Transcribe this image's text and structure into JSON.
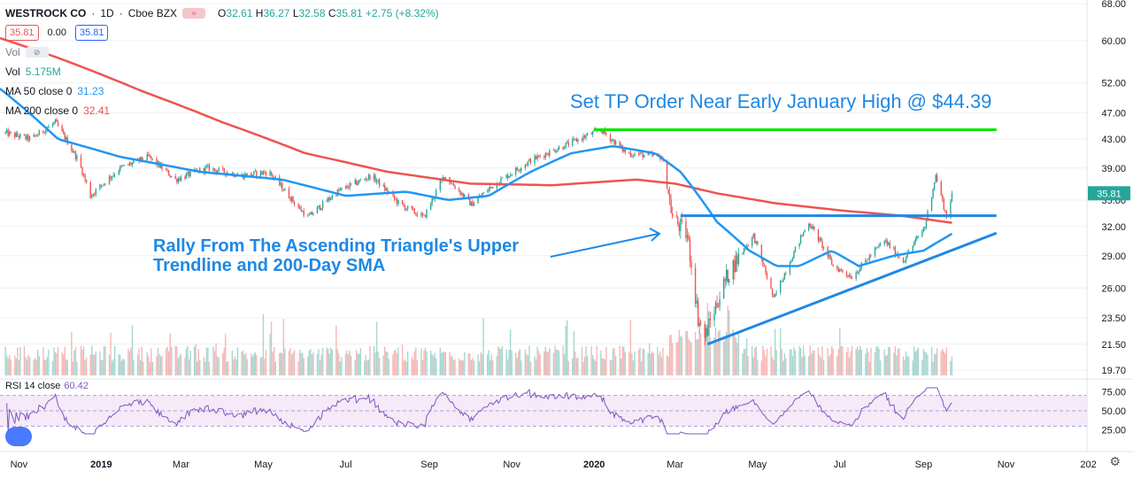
{
  "header": {
    "symbol": "WESTROCK CO",
    "interval": "1D",
    "exchange": "Cboe BZX",
    "open_label": "O",
    "open": "32.61",
    "high_label": "H",
    "high": "36.27",
    "low_label": "L",
    "low": "32.58",
    "close_label": "C",
    "close": "35.81",
    "change": "+2.75 (+8.32%)",
    "bid": "35.81",
    "spread": "0.00",
    "ask": "35.81"
  },
  "indicators": {
    "vol_toggle": "Vol",
    "vol_label": "Vol",
    "vol_value": "5.175M",
    "ma50_label": "MA 50 close 0",
    "ma50_value": "31.23",
    "ma200_label": "MA 200 close 0",
    "ma200_value": "32.41",
    "rsi_label": "RSI 14 close",
    "rsi_value": "60.42"
  },
  "colors": {
    "up": "#26a69a",
    "down": "#ef5350",
    "ma50": "#2196f3",
    "ma200": "#ef5350",
    "annotation": "#1e88e5",
    "target_line": "#00e600",
    "rsi": "#7e57c2"
  },
  "annotations": {
    "target_text": "Set TP Order Near Early January High @ $44.39",
    "rally_line1": "Rally From The Ascending Triangle's Upper",
    "rally_line2": "Trendline and 200-Day SMA"
  },
  "axis": {
    "price_ticks": [
      "68.00",
      "60.00",
      "52.00",
      "47.00",
      "43.00",
      "39.00",
      "35.00",
      "32.00",
      "29.00",
      "26.00",
      "23.50",
      "21.50",
      "19.70"
    ],
    "rsi_ticks": [
      "75.00",
      "50.00",
      "25.00"
    ],
    "time_labels": [
      "Nov",
      "2019",
      "Mar",
      "May",
      "Jul",
      "Sep",
      "Nov",
      "2020",
      "Mar",
      "May",
      "Jul",
      "Sep",
      "Nov",
      "202"
    ]
  },
  "chart_data": {
    "type": "candlestick",
    "title": "WESTROCK CO · 1D · Cboe BZX",
    "price_scale": "log",
    "ylim": [
      19.7,
      68
    ],
    "x_range": [
      "2018-10-18",
      "2020-12-31"
    ],
    "waypoints": [
      {
        "date": "2018-10-20",
        "close": 44.0
      },
      {
        "date": "2018-11-10",
        "close": 43.0
      },
      {
        "date": "2018-11-28",
        "close": 45.5
      },
      {
        "date": "2018-12-15",
        "close": 40.0
      },
      {
        "date": "2018-12-24",
        "close": 35.5
      },
      {
        "date": "2019-01-15",
        "close": 39.0
      },
      {
        "date": "2019-02-05",
        "close": 40.5
      },
      {
        "date": "2019-02-25",
        "close": 37.5
      },
      {
        "date": "2019-03-20",
        "close": 39.0
      },
      {
        "date": "2019-04-15",
        "close": 38.0
      },
      {
        "date": "2019-05-05",
        "close": 38.5
      },
      {
        "date": "2019-05-25",
        "close": 34.5
      },
      {
        "date": "2019-06-03",
        "close": 33.0
      },
      {
        "date": "2019-06-25",
        "close": 36.0
      },
      {
        "date": "2019-07-20",
        "close": 38.0
      },
      {
        "date": "2019-08-10",
        "close": 34.5
      },
      {
        "date": "2019-08-28",
        "close": 33.0
      },
      {
        "date": "2019-09-12",
        "close": 38.0
      },
      {
        "date": "2019-10-02",
        "close": 34.5
      },
      {
        "date": "2019-10-20",
        "close": 37.0
      },
      {
        "date": "2019-11-15",
        "close": 40.0
      },
      {
        "date": "2019-12-15",
        "close": 42.5
      },
      {
        "date": "2020-01-06",
        "close": 44.39
      },
      {
        "date": "2020-01-25",
        "close": 41.0
      },
      {
        "date": "2020-02-20",
        "close": 40.5
      },
      {
        "date": "2020-02-28",
        "close": 33.0
      },
      {
        "date": "2020-03-10",
        "close": 31.0
      },
      {
        "date": "2020-03-18",
        "close": 23.5
      },
      {
        "date": "2020-03-23",
        "close": 22.0
      },
      {
        "date": "2020-04-10",
        "close": 27.5
      },
      {
        "date": "2020-04-28",
        "close": 31.0
      },
      {
        "date": "2020-05-13",
        "close": 25.0
      },
      {
        "date": "2020-06-08",
        "close": 32.5
      },
      {
        "date": "2020-06-26",
        "close": 28.0
      },
      {
        "date": "2020-07-10",
        "close": 27.0
      },
      {
        "date": "2020-08-03",
        "close": 30.5
      },
      {
        "date": "2020-08-17",
        "close": 28.5
      },
      {
        "date": "2020-09-02",
        "close": 32.0
      },
      {
        "date": "2020-09-10",
        "close": 38.0
      },
      {
        "date": "2020-09-18",
        "close": 33.0
      },
      {
        "date": "2020-09-22",
        "close": 35.81
      }
    ],
    "ma50_waypoints": [
      {
        "date": "2018-10-18",
        "value": 51.0
      },
      {
        "date": "2018-11-30",
        "value": 43.0
      },
      {
        "date": "2019-01-15",
        "value": 40.5
      },
      {
        "date": "2019-03-15",
        "value": 38.5
      },
      {
        "date": "2019-05-15",
        "value": 37.5
      },
      {
        "date": "2019-07-01",
        "value": 35.5
      },
      {
        "date": "2019-08-15",
        "value": 36.0
      },
      {
        "date": "2019-09-15",
        "value": 35.0
      },
      {
        "date": "2019-10-15",
        "value": 35.5
      },
      {
        "date": "2019-11-15",
        "value": 38.5
      },
      {
        "date": "2019-12-15",
        "value": 41.0
      },
      {
        "date": "2020-01-15",
        "value": 42.0
      },
      {
        "date": "2020-02-15",
        "value": 41.0
      },
      {
        "date": "2020-03-05",
        "value": 38.5
      },
      {
        "date": "2020-04-01",
        "value": 32.5
      },
      {
        "date": "2020-04-25",
        "value": 29.5
      },
      {
        "date": "2020-05-15",
        "value": 28.0
      },
      {
        "date": "2020-06-01",
        "value": 28.0
      },
      {
        "date": "2020-06-25",
        "value": 29.5
      },
      {
        "date": "2020-07-15",
        "value": 28.0
      },
      {
        "date": "2020-08-10",
        "value": 29.0
      },
      {
        "date": "2020-09-01",
        "value": 29.5
      },
      {
        "date": "2020-09-22",
        "value": 31.23
      }
    ],
    "ma200_waypoints": [
      {
        "date": "2018-10-18",
        "value": 60.5
      },
      {
        "date": "2018-12-01",
        "value": 56.5
      },
      {
        "date": "2019-02-01",
        "value": 50.5
      },
      {
        "date": "2019-04-01",
        "value": 45.5
      },
      {
        "date": "2019-06-01",
        "value": 41.0
      },
      {
        "date": "2019-08-01",
        "value": 38.5
      },
      {
        "date": "2019-10-01",
        "value": 37.0
      },
      {
        "date": "2019-12-01",
        "value": 36.8
      },
      {
        "date": "2020-02-01",
        "value": 37.5
      },
      {
        "date": "2020-03-01",
        "value": 37.0
      },
      {
        "date": "2020-04-01",
        "value": 35.8
      },
      {
        "date": "2020-05-15",
        "value": 34.6
      },
      {
        "date": "2020-07-01",
        "value": 33.8
      },
      {
        "date": "2020-08-15",
        "value": 33.2
      },
      {
        "date": "2020-09-22",
        "value": 32.41
      }
    ],
    "target_line": {
      "start": "2020-01-01",
      "end": "2020-10-25",
      "value": 44.39
    },
    "triangle_upper": {
      "start": "2020-03-05",
      "end": "2020-10-25",
      "value": 33.2
    },
    "triangle_lower": {
      "start": "2020-03-25",
      "start_value": 21.5,
      "end": "2020-10-25",
      "end_value": 31.3
    },
    "rsi": {
      "level_upper": 70,
      "level_mid": 50,
      "level_lower": 30,
      "last": 60.42
    }
  }
}
